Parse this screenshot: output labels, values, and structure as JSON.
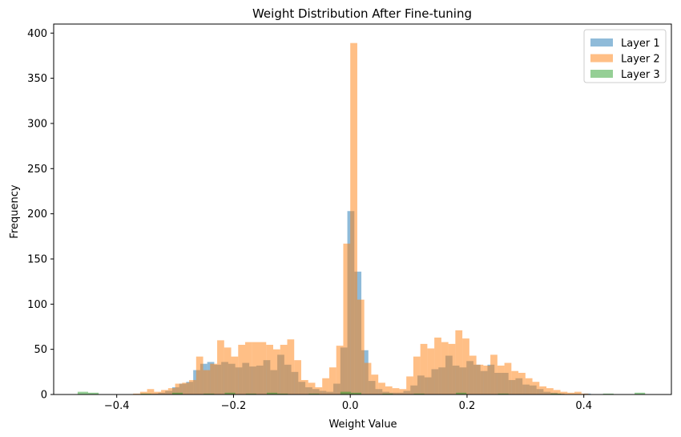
{
  "chart_data": {
    "type": "histogram",
    "title": "Weight Distribution After Fine-tuning",
    "xlabel": "Weight Value",
    "ylabel": "Frequency",
    "xlim": [
      -0.508,
      0.55
    ],
    "ylim": [
      0,
      410
    ],
    "xticks": [
      -0.4,
      -0.2,
      0.0,
      0.2,
      0.4
    ],
    "xtick_labels": [
      "−0.4",
      "−0.2",
      "0.0",
      "0.2",
      "0.4"
    ],
    "yticks": [
      0,
      50,
      100,
      150,
      200,
      250,
      300,
      350,
      400
    ],
    "ytick_labels": [
      "0",
      "50",
      "100",
      "150",
      "200",
      "250",
      "300",
      "350",
      "400"
    ],
    "grid": false,
    "legend_position": "top-right",
    "series": [
      {
        "name": "Layer 1",
        "color": "#1f77b4",
        "opacity": 0.5,
        "bins": [
          {
            "x0": -0.341,
            "x1": -0.329,
            "y": 1
          },
          {
            "x0": -0.329,
            "x1": -0.317,
            "y": 2
          },
          {
            "x0": -0.317,
            "x1": -0.305,
            "y": 4
          },
          {
            "x0": -0.305,
            "x1": -0.293,
            "y": 8
          },
          {
            "x0": -0.293,
            "x1": -0.281,
            "y": 12
          },
          {
            "x0": -0.281,
            "x1": -0.269,
            "y": 14
          },
          {
            "x0": -0.269,
            "x1": -0.257,
            "y": 27
          },
          {
            "x0": -0.257,
            "x1": -0.245,
            "y": 34
          },
          {
            "x0": -0.245,
            "x1": -0.233,
            "y": 36
          },
          {
            "x0": -0.233,
            "x1": -0.221,
            "y": 33
          },
          {
            "x0": -0.221,
            "x1": -0.209,
            "y": 36
          },
          {
            "x0": -0.209,
            "x1": -0.197,
            "y": 34
          },
          {
            "x0": -0.197,
            "x1": -0.185,
            "y": 30
          },
          {
            "x0": -0.185,
            "x1": -0.173,
            "y": 35
          },
          {
            "x0": -0.173,
            "x1": -0.161,
            "y": 31
          },
          {
            "x0": -0.161,
            "x1": -0.149,
            "y": 32
          },
          {
            "x0": -0.149,
            "x1": -0.137,
            "y": 38
          },
          {
            "x0": -0.137,
            "x1": -0.125,
            "y": 27
          },
          {
            "x0": -0.125,
            "x1": -0.113,
            "y": 44
          },
          {
            "x0": -0.113,
            "x1": -0.101,
            "y": 33
          },
          {
            "x0": -0.101,
            "x1": -0.089,
            "y": 25
          },
          {
            "x0": -0.089,
            "x1": -0.077,
            "y": 14
          },
          {
            "x0": -0.077,
            "x1": -0.065,
            "y": 8
          },
          {
            "x0": -0.065,
            "x1": -0.053,
            "y": 6
          },
          {
            "x0": -0.053,
            "x1": -0.041,
            "y": 4
          },
          {
            "x0": -0.041,
            "x1": -0.029,
            "y": 3
          },
          {
            "x0": -0.029,
            "x1": -0.017,
            "y": 12
          },
          {
            "x0": -0.017,
            "x1": -0.005,
            "y": 52
          },
          {
            "x0": -0.005,
            "x1": 0.007,
            "y": 203
          },
          {
            "x0": 0.007,
            "x1": 0.019,
            "y": 136
          },
          {
            "x0": 0.019,
            "x1": 0.031,
            "y": 49
          },
          {
            "x0": 0.031,
            "x1": 0.043,
            "y": 15
          },
          {
            "x0": 0.043,
            "x1": 0.055,
            "y": 6
          },
          {
            "x0": 0.055,
            "x1": 0.067,
            "y": 3
          },
          {
            "x0": 0.067,
            "x1": 0.079,
            "y": 2
          },
          {
            "x0": 0.079,
            "x1": 0.091,
            "y": 2
          },
          {
            "x0": 0.091,
            "x1": 0.103,
            "y": 4
          },
          {
            "x0": 0.103,
            "x1": 0.115,
            "y": 10
          },
          {
            "x0": 0.115,
            "x1": 0.127,
            "y": 21
          },
          {
            "x0": 0.127,
            "x1": 0.139,
            "y": 19
          },
          {
            "x0": 0.139,
            "x1": 0.151,
            "y": 28
          },
          {
            "x0": 0.151,
            "x1": 0.163,
            "y": 30
          },
          {
            "x0": 0.163,
            "x1": 0.175,
            "y": 43
          },
          {
            "x0": 0.175,
            "x1": 0.187,
            "y": 32
          },
          {
            "x0": 0.187,
            "x1": 0.199,
            "y": 30
          },
          {
            "x0": 0.199,
            "x1": 0.211,
            "y": 37
          },
          {
            "x0": 0.211,
            "x1": 0.223,
            "y": 33
          },
          {
            "x0": 0.223,
            "x1": 0.235,
            "y": 26
          },
          {
            "x0": 0.235,
            "x1": 0.247,
            "y": 33
          },
          {
            "x0": 0.247,
            "x1": 0.259,
            "y": 24
          },
          {
            "x0": 0.259,
            "x1": 0.271,
            "y": 24
          },
          {
            "x0": 0.271,
            "x1": 0.283,
            "y": 16
          },
          {
            "x0": 0.283,
            "x1": 0.295,
            "y": 18
          },
          {
            "x0": 0.295,
            "x1": 0.307,
            "y": 11
          },
          {
            "x0": 0.307,
            "x1": 0.319,
            "y": 10
          },
          {
            "x0": 0.319,
            "x1": 0.331,
            "y": 6
          },
          {
            "x0": 0.331,
            "x1": 0.343,
            "y": 3
          },
          {
            "x0": 0.343,
            "x1": 0.355,
            "y": 2
          },
          {
            "x0": 0.355,
            "x1": 0.367,
            "y": 1
          },
          {
            "x0": 0.4,
            "x1": 0.412,
            "y": 1
          }
        ]
      },
      {
        "name": "Layer 2",
        "color": "#ff7f0e",
        "opacity": 0.5,
        "bins": [
          {
            "x0": -0.372,
            "x1": -0.36,
            "y": 1
          },
          {
            "x0": -0.36,
            "x1": -0.348,
            "y": 3
          },
          {
            "x0": -0.348,
            "x1": -0.336,
            "y": 6
          },
          {
            "x0": -0.336,
            "x1": -0.324,
            "y": 3
          },
          {
            "x0": -0.324,
            "x1": -0.312,
            "y": 5
          },
          {
            "x0": -0.312,
            "x1": -0.3,
            "y": 7
          },
          {
            "x0": -0.3,
            "x1": -0.288,
            "y": 12
          },
          {
            "x0": -0.288,
            "x1": -0.276,
            "y": 13
          },
          {
            "x0": -0.276,
            "x1": -0.264,
            "y": 16
          },
          {
            "x0": -0.264,
            "x1": -0.252,
            "y": 42
          },
          {
            "x0": -0.252,
            "x1": -0.24,
            "y": 27
          },
          {
            "x0": -0.24,
            "x1": -0.228,
            "y": 34
          },
          {
            "x0": -0.228,
            "x1": -0.216,
            "y": 60
          },
          {
            "x0": -0.216,
            "x1": -0.204,
            "y": 52
          },
          {
            "x0": -0.204,
            "x1": -0.192,
            "y": 42
          },
          {
            "x0": -0.192,
            "x1": -0.18,
            "y": 55
          },
          {
            "x0": -0.18,
            "x1": -0.168,
            "y": 58
          },
          {
            "x0": -0.168,
            "x1": -0.156,
            "y": 58
          },
          {
            "x0": -0.156,
            "x1": -0.144,
            "y": 58
          },
          {
            "x0": -0.144,
            "x1": -0.132,
            "y": 55
          },
          {
            "x0": -0.132,
            "x1": -0.12,
            "y": 50
          },
          {
            "x0": -0.12,
            "x1": -0.108,
            "y": 55
          },
          {
            "x0": -0.108,
            "x1": -0.096,
            "y": 61
          },
          {
            "x0": -0.096,
            "x1": -0.084,
            "y": 38
          },
          {
            "x0": -0.084,
            "x1": -0.072,
            "y": 16
          },
          {
            "x0": -0.072,
            "x1": -0.06,
            "y": 13
          },
          {
            "x0": -0.06,
            "x1": -0.048,
            "y": 8
          },
          {
            "x0": -0.048,
            "x1": -0.036,
            "y": 18
          },
          {
            "x0": -0.036,
            "x1": -0.024,
            "y": 30
          },
          {
            "x0": -0.024,
            "x1": -0.012,
            "y": 54
          },
          {
            "x0": -0.012,
            "x1": 0.0,
            "y": 167
          },
          {
            "x0": 0.0,
            "x1": 0.012,
            "y": 389
          },
          {
            "x0": 0.012,
            "x1": 0.024,
            "y": 105
          },
          {
            "x0": 0.024,
            "x1": 0.036,
            "y": 35
          },
          {
            "x0": 0.036,
            "x1": 0.048,
            "y": 22
          },
          {
            "x0": 0.048,
            "x1": 0.06,
            "y": 13
          },
          {
            "x0": 0.06,
            "x1": 0.072,
            "y": 9
          },
          {
            "x0": 0.072,
            "x1": 0.084,
            "y": 7
          },
          {
            "x0": 0.084,
            "x1": 0.096,
            "y": 6
          },
          {
            "x0": 0.096,
            "x1": 0.108,
            "y": 20
          },
          {
            "x0": 0.108,
            "x1": 0.12,
            "y": 42
          },
          {
            "x0": 0.12,
            "x1": 0.132,
            "y": 56
          },
          {
            "x0": 0.132,
            "x1": 0.144,
            "y": 51
          },
          {
            "x0": 0.144,
            "x1": 0.156,
            "y": 63
          },
          {
            "x0": 0.156,
            "x1": 0.168,
            "y": 58
          },
          {
            "x0": 0.168,
            "x1": 0.18,
            "y": 56
          },
          {
            "x0": 0.18,
            "x1": 0.192,
            "y": 71
          },
          {
            "x0": 0.192,
            "x1": 0.204,
            "y": 62
          },
          {
            "x0": 0.204,
            "x1": 0.216,
            "y": 43
          },
          {
            "x0": 0.216,
            "x1": 0.228,
            "y": 33
          },
          {
            "x0": 0.228,
            "x1": 0.24,
            "y": 32
          },
          {
            "x0": 0.24,
            "x1": 0.252,
            "y": 44
          },
          {
            "x0": 0.252,
            "x1": 0.264,
            "y": 32
          },
          {
            "x0": 0.264,
            "x1": 0.276,
            "y": 35
          },
          {
            "x0": 0.276,
            "x1": 0.288,
            "y": 26
          },
          {
            "x0": 0.288,
            "x1": 0.3,
            "y": 24
          },
          {
            "x0": 0.3,
            "x1": 0.312,
            "y": 18
          },
          {
            "x0": 0.312,
            "x1": 0.324,
            "y": 14
          },
          {
            "x0": 0.324,
            "x1": 0.336,
            "y": 9
          },
          {
            "x0": 0.336,
            "x1": 0.348,
            "y": 7
          },
          {
            "x0": 0.348,
            "x1": 0.36,
            "y": 5
          },
          {
            "x0": 0.36,
            "x1": 0.372,
            "y": 3
          },
          {
            "x0": 0.372,
            "x1": 0.384,
            "y": 2
          },
          {
            "x0": 0.384,
            "x1": 0.396,
            "y": 3
          },
          {
            "x0": 0.396,
            "x1": 0.408,
            "y": 1
          }
        ]
      },
      {
        "name": "Layer 3",
        "color": "#2ca02c",
        "opacity": 0.5,
        "bins": [
          {
            "x0": -0.467,
            "x1": -0.449,
            "y": 3
          },
          {
            "x0": -0.449,
            "x1": -0.431,
            "y": 2
          },
          {
            "x0": -0.359,
            "x1": -0.341,
            "y": 1
          },
          {
            "x0": -0.305,
            "x1": -0.287,
            "y": 2
          },
          {
            "x0": -0.251,
            "x1": -0.233,
            "y": 1
          },
          {
            "x0": -0.215,
            "x1": -0.197,
            "y": 2
          },
          {
            "x0": -0.179,
            "x1": -0.161,
            "y": 1
          },
          {
            "x0": -0.143,
            "x1": -0.125,
            "y": 2
          },
          {
            "x0": -0.125,
            "x1": -0.107,
            "y": 1
          },
          {
            "x0": -0.071,
            "x1": -0.053,
            "y": 1
          },
          {
            "x0": -0.017,
            "x1": 0.001,
            "y": 3
          },
          {
            "x0": 0.001,
            "x1": 0.019,
            "y": 2
          },
          {
            "x0": 0.055,
            "x1": 0.073,
            "y": 1
          },
          {
            "x0": 0.109,
            "x1": 0.127,
            "y": 1
          },
          {
            "x0": 0.181,
            "x1": 0.199,
            "y": 2
          },
          {
            "x0": 0.253,
            "x1": 0.271,
            "y": 1
          },
          {
            "x0": 0.343,
            "x1": 0.361,
            "y": 1
          },
          {
            "x0": 0.433,
            "x1": 0.451,
            "y": 1
          },
          {
            "x0": 0.487,
            "x1": 0.505,
            "y": 2
          }
        ]
      }
    ]
  }
}
